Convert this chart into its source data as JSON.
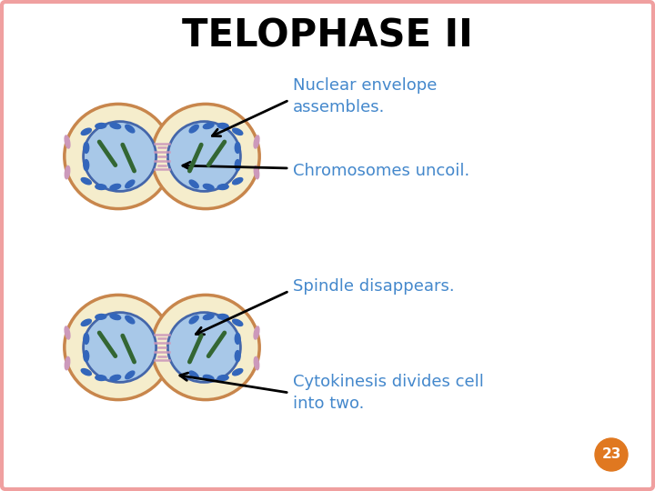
{
  "title": "TELOPHASE II",
  "title_fontsize": 30,
  "title_color": "#000000",
  "bg_color": "#ffffff",
  "border_color": "#f0a0a0",
  "labels": [
    "Nuclear envelope\nassembles.",
    "Chromosomes uncoil.",
    "Spindle disappears.",
    "Cytokinesis divides cell\ninto two."
  ],
  "label_color": "#4488cc",
  "label_fontsize": 13,
  "page_num": "23",
  "page_num_bg": "#e07820",
  "outer_cell_fill": "#f5edcc",
  "outer_cell_border": "#c8864c",
  "nucleus_fill": "#a8c8e8",
  "nucleus_border": "#4466aa",
  "chrom_blue": "#3366bb",
  "chrom_green": "#336633",
  "chrom_pink": "#cc99bb",
  "spindle_color": "#cc99bb"
}
